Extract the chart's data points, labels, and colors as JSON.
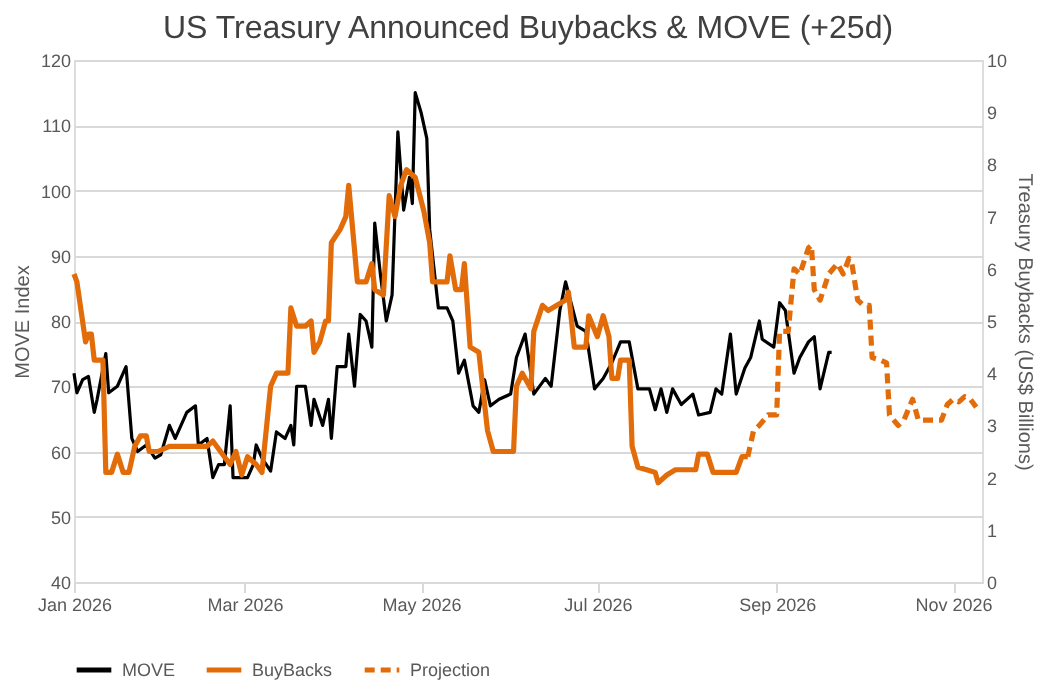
{
  "chart_data": {
    "type": "line",
    "title": "US Treasury Announced Buybacks & MOVE (+25d)",
    "ylabel": "MOVE Index",
    "y2label": "Treasury Buybacks (US$ Billions)",
    "xlim": [
      "2026-01-01",
      "2026-11-11"
    ],
    "xticks": [
      {
        "value": "2026-01-01",
        "label": "Jan 2026"
      },
      {
        "value": "2026-03-01",
        "label": "Mar 2026"
      },
      {
        "value": "2026-05-01",
        "label": "May 2026"
      },
      {
        "value": "2026-07-01",
        "label": "Jul 2026"
      },
      {
        "value": "2026-09-01",
        "label": "Sep 2026"
      },
      {
        "value": "2026-11-01",
        "label": "Nov 2026"
      }
    ],
    "ylim": [
      40,
      120
    ],
    "yticks": [
      40,
      50,
      60,
      70,
      80,
      90,
      100,
      110,
      120
    ],
    "y2lim": [
      0,
      10
    ],
    "y2ticks": [
      0,
      1,
      2,
      3,
      4,
      5,
      6,
      7,
      8,
      9,
      10
    ],
    "grid": "y",
    "legend": "bottom",
    "series": [
      {
        "name": "MOVE",
        "color": "#000000",
        "axis": "y",
        "line_style": "solid",
        "x": [
          "2026-01-01",
          "2026-01-02",
          "2026-01-04",
          "2026-01-06",
          "2026-01-08",
          "2026-01-09",
          "2026-01-12",
          "2026-01-13",
          "2026-01-16",
          "2026-01-19",
          "2026-01-21",
          "2026-01-23",
          "2026-01-26",
          "2026-01-29",
          "2026-01-31",
          "2026-02-03",
          "2026-02-05",
          "2026-02-09",
          "2026-02-12",
          "2026-02-13",
          "2026-02-16",
          "2026-02-18",
          "2026-02-20",
          "2026-02-22",
          "2026-02-24",
          "2026-02-25",
          "2026-03-02",
          "2026-03-04",
          "2026-03-05",
          "2026-03-07",
          "2026-03-10",
          "2026-03-12",
          "2026-03-15",
          "2026-03-17",
          "2026-03-18",
          "2026-03-19",
          "2026-03-22",
          "2026-03-24",
          "2026-03-25",
          "2026-03-28",
          "2026-03-30",
          "2026-03-31",
          "2026-04-02",
          "2026-04-05",
          "2026-04-06",
          "2026-04-08",
          "2026-04-10",
          "2026-04-12",
          "2026-04-14",
          "2026-04-15",
          "2026-04-17",
          "2026-04-19",
          "2026-04-21",
          "2026-04-23",
          "2026-04-25",
          "2026-04-27",
          "2026-04-28",
          "2026-04-29",
          "2026-05-01",
          "2026-05-03",
          "2026-05-04",
          "2026-05-07",
          "2026-05-10",
          "2026-05-12",
          "2026-05-14",
          "2026-05-16",
          "2026-05-19",
          "2026-05-21",
          "2026-05-23",
          "2026-05-25",
          "2026-05-28",
          "2026-06-01",
          "2026-06-03",
          "2026-06-06",
          "2026-06-09",
          "2026-06-13",
          "2026-06-15",
          "2026-06-18",
          "2026-06-20",
          "2026-06-24",
          "2026-06-27",
          "2026-06-30",
          "2026-07-03",
          "2026-07-06",
          "2026-07-09",
          "2026-07-12",
          "2026-07-15",
          "2026-07-19",
          "2026-07-21",
          "2026-07-23",
          "2026-07-25",
          "2026-07-27",
          "2026-07-30",
          "2026-08-03",
          "2026-08-05",
          "2026-08-09",
          "2026-08-11",
          "2026-08-13",
          "2026-08-16",
          "2026-08-18",
          "2026-08-21",
          "2026-08-23",
          "2026-08-26",
          "2026-08-27",
          "2026-08-31",
          "2026-09-02",
          "2026-09-04",
          "2026-09-07",
          "2026-09-09",
          "2026-09-12",
          "2026-09-14",
          "2026-09-16",
          "2026-09-19",
          "2026-09-20"
        ],
        "values": [
          72,
          69,
          71,
          71.5,
          66,
          68,
          75,
          69,
          70,
          73,
          62,
          60,
          61,
          59,
          59.5,
          64,
          62,
          66,
          67,
          61,
          62,
          56,
          58,
          58,
          67,
          56,
          56,
          58,
          61,
          59,
          57,
          63,
          62,
          64,
          61,
          70,
          70,
          64,
          68,
          64,
          68,
          62,
          73,
          73,
          78,
          70,
          81,
          80,
          76,
          95,
          87,
          80,
          84,
          109,
          97,
          102,
          98,
          115,
          112,
          108,
          94,
          82,
          82,
          80,
          72,
          74,
          67,
          66,
          71,
          67,
          68,
          68.8,
          74.4,
          78,
          68.8,
          71.2,
          70,
          81.6,
          86,
          79.2,
          78.4,
          69.6,
          71.2,
          73.6,
          76.8,
          76.8,
          69.6,
          69.6,
          66.4,
          69.6,
          66,
          69.6,
          67.2,
          68.8,
          65.6,
          66,
          69.6,
          68.8,
          78,
          68.8,
          72.8,
          74.4,
          80,
          77.2,
          76,
          82.8,
          81.6,
          72,
          74.4,
          76.8,
          77.6,
          69.6,
          75.2,
          75.2
        ]
      },
      {
        "name": "BuyBacks",
        "color": "#e36c0a",
        "axis": "y2",
        "line_style": "solid",
        "x": [
          "2026-01-01",
          "2026-01-02",
          "2026-01-05",
          "2026-01-06",
          "2026-01-07",
          "2026-01-08",
          "2026-01-11",
          "2026-01-12",
          "2026-01-14",
          "2026-01-16",
          "2026-01-18",
          "2026-01-20",
          "2026-01-22",
          "2026-01-24",
          "2026-01-26",
          "2026-01-27",
          "2026-01-30",
          "2026-02-03",
          "2026-02-16",
          "2026-02-18",
          "2026-02-22",
          "2026-02-24",
          "2026-02-26",
          "2026-02-28",
          "2026-03-02",
          "2026-03-05",
          "2026-03-07",
          "2026-03-10",
          "2026-03-12",
          "2026-03-16",
          "2026-03-17",
          "2026-03-19",
          "2026-03-22",
          "2026-03-24",
          "2026-03-25",
          "2026-03-27",
          "2026-03-29",
          "2026-03-30",
          "2026-03-31",
          "2026-04-03",
          "2026-04-05",
          "2026-04-06",
          "2026-04-09",
          "2026-04-12",
          "2026-04-14",
          "2026-04-15",
          "2026-04-18",
          "2026-04-20",
          "2026-04-22",
          "2026-04-24",
          "2026-04-26",
          "2026-04-29",
          "2026-05-02",
          "2026-05-04",
          "2026-05-05",
          "2026-05-10",
          "2026-05-11",
          "2026-05-13",
          "2026-05-15",
          "2026-05-16",
          "2026-05-18",
          "2026-05-21",
          "2026-05-24",
          "2026-05-26",
          "2026-06-01",
          "2026-06-02",
          "2026-06-03",
          "2026-06-05",
          "2026-06-08",
          "2026-06-09",
          "2026-06-12",
          "2026-06-14",
          "2026-06-17",
          "2026-06-20",
          "2026-06-21",
          "2026-06-23",
          "2026-06-27",
          "2026-06-28",
          "2026-07-01",
          "2026-07-03",
          "2026-07-05",
          "2026-07-06",
          "2026-07-08",
          "2026-07-09",
          "2026-07-12",
          "2026-07-13",
          "2026-07-15",
          "2026-07-18",
          "2026-07-21",
          "2026-07-22",
          "2026-07-25",
          "2026-07-28",
          "2026-08-04",
          "2026-08-05",
          "2026-08-08",
          "2026-08-10",
          "2026-08-18",
          "2026-08-20",
          "2026-08-22"
        ],
        "values": [
          5.9,
          5.75,
          4.6,
          4.75,
          4.75,
          4.25,
          4.25,
          2.1,
          2.1,
          2.45,
          2.1,
          2.1,
          2.6,
          2.8,
          2.8,
          2.5,
          2.5,
          2.6,
          2.6,
          2.7,
          2.4,
          2.25,
          2.5,
          2.05,
          2.4,
          2.25,
          2.1,
          3.75,
          4.0,
          4.0,
          5.25,
          4.9,
          4.9,
          5.0,
          4.4,
          4.6,
          5.0,
          5.0,
          6.5,
          6.75,
          7.0,
          7.6,
          5.75,
          5.75,
          6.1,
          5.6,
          5.5,
          7.4,
          7.0,
          7.6,
          7.9,
          7.75,
          7.1,
          6.5,
          5.75,
          5.75,
          6.25,
          5.6,
          5.6,
          6.1,
          4.5,
          4.4,
          2.9,
          2.5,
          2.5,
          2.5,
          3.75,
          4.0,
          3.7,
          4.8,
          5.3,
          5.2,
          5.3,
          5.4,
          5.55,
          4.5,
          4.5,
          5.1,
          4.7,
          5.1,
          4.7,
          3.9,
          3.9,
          4.25,
          4.25,
          2.6,
          2.2,
          2.15,
          2.1,
          1.9,
          2.05,
          2.15,
          2.15,
          2.45,
          2.45,
          2.1,
          2.1,
          2.4,
          2.4
        ]
      },
      {
        "name": "Projection",
        "color": "#e36c0a",
        "axis": "y2",
        "line_style": "dashed",
        "x": [
          "2026-08-22",
          "2026-08-24",
          "2026-08-26",
          "2026-08-29",
          "2026-09-01",
          "2026-09-02",
          "2026-09-05",
          "2026-09-07",
          "2026-09-09",
          "2026-09-12",
          "2026-09-13",
          "2026-09-14",
          "2026-09-16",
          "2026-09-19",
          "2026-09-22",
          "2026-09-24",
          "2026-09-26",
          "2026-09-27",
          "2026-09-29",
          "2026-10-01",
          "2026-10-03",
          "2026-10-04",
          "2026-10-07",
          "2026-10-09",
          "2026-10-10",
          "2026-10-13",
          "2026-10-15",
          "2026-10-18",
          "2026-10-20",
          "2026-10-28",
          "2026-10-30",
          "2026-11-01",
          "2026-11-03",
          "2026-11-05",
          "2026-11-07",
          "2026-11-09"
        ],
        "values": [
          2.4,
          2.9,
          3.0,
          3.2,
          3.2,
          4.8,
          4.8,
          6.0,
          5.9,
          6.4,
          6.45,
          5.6,
          5.4,
          5.9,
          6.1,
          5.9,
          6.2,
          6.1,
          5.4,
          5.3,
          5.3,
          4.3,
          4.25,
          4.2,
          3.2,
          3.0,
          3.1,
          3.5,
          3.1,
          3.1,
          3.4,
          3.5,
          3.45,
          3.55,
          3.5,
          3.35
        ]
      }
    ]
  }
}
